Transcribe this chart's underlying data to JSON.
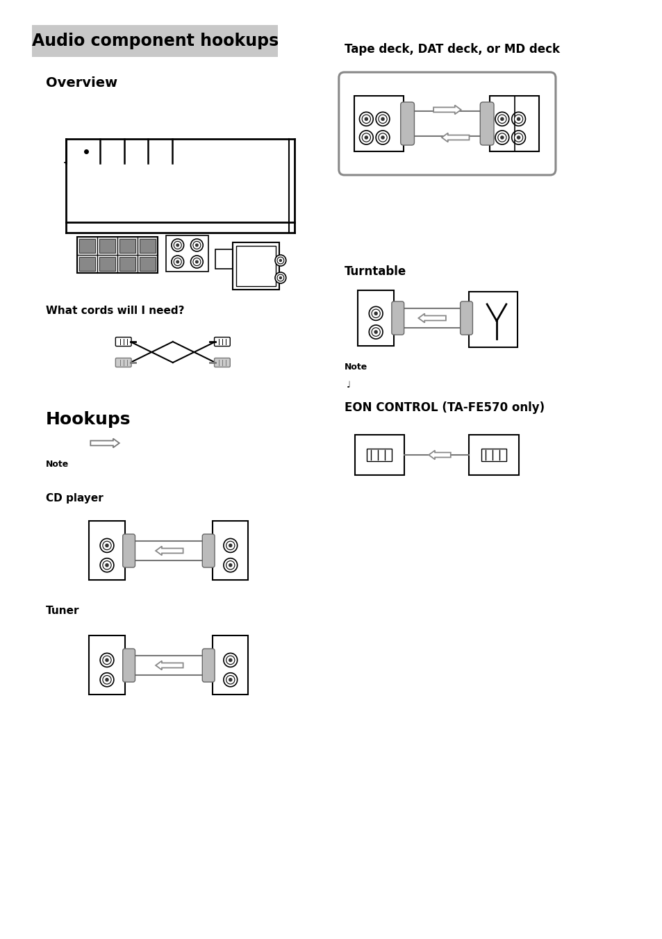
{
  "title": "Audio component hookups",
  "title_bg": "#cccccc",
  "bg_color": "#ffffff",
  "sections": {
    "overview": "Overview",
    "what_cords": "What cords will I need?",
    "hookups": "Hookups",
    "note": "Note",
    "cd_player": "CD player",
    "tuner": "Tuner",
    "tape_deck": "Tape deck, DAT deck, or MD deck",
    "turntable": "Turntable",
    "note2": "Note",
    "eon_control": "EON CONTROL (TA-FE570 only)"
  },
  "colors": {
    "black": "#000000",
    "gray": "#888888",
    "light_gray": "#bbbbbb",
    "mid_gray": "#666666",
    "title_bg": "#c8c8c8"
  }
}
